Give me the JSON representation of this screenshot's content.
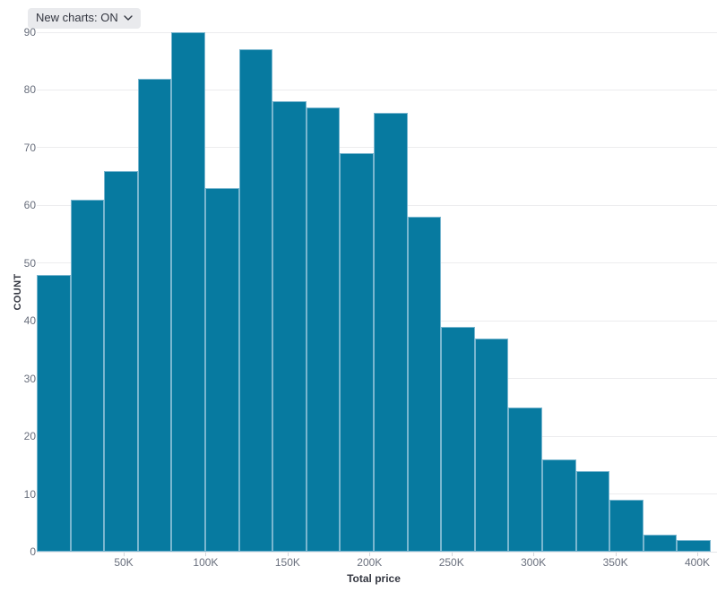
{
  "controls": {
    "new_charts_button": "New charts: ON"
  },
  "chart_data": {
    "type": "bar",
    "title": "",
    "xlabel": "Total price",
    "ylabel": "COUNT",
    "categories": [
      "0-20K",
      "20K-40K",
      "40K-60K",
      "60K-80K",
      "80K-100K",
      "100K-120K",
      "120K-140K",
      "140K-160K",
      "160K-180K",
      "180K-200K",
      "200K-220K",
      "220K-240K",
      "240K-260K",
      "260K-280K",
      "280K-300K",
      "300K-320K",
      "320K-340K",
      "340K-360K",
      "360K-380K",
      "380K-400K"
    ],
    "values": [
      48,
      61,
      66,
      82,
      90,
      63,
      87,
      78,
      77,
      69,
      76,
      58,
      39,
      37,
      25,
      16,
      14,
      9,
      3,
      2
    ],
    "x_tick_labels": [
      "50K",
      "100K",
      "150K",
      "200K",
      "250K",
      "300K",
      "350K",
      "400K"
    ],
    "y_tick_labels": [
      "0",
      "10",
      "20",
      "30",
      "40",
      "50",
      "60",
      "70",
      "80",
      "90"
    ],
    "ylim": [
      0,
      90
    ],
    "legend": "none",
    "grid": "horizontal",
    "colors": {
      "bar_fill": "#077aa0",
      "bar_stroke": "#79b6cf",
      "gridline": "#ececee",
      "tick_text": "#696f7d",
      "axis_title_text": "#343741",
      "dropdown_bg": "#e9eaed"
    }
  }
}
